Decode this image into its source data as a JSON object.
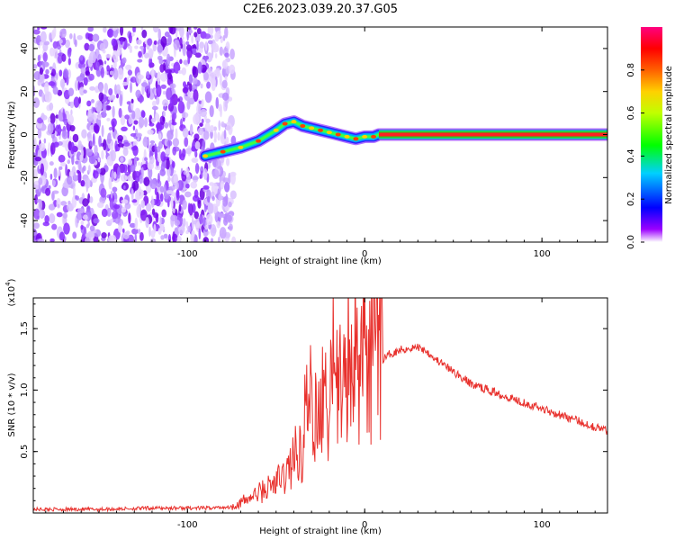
{
  "title": "C2E6.2023.039.20.37.G05",
  "chart_data": [
    {
      "type": "heatmap",
      "xlabel": "Height of straight line (km)",
      "ylabel": "Frequency (Hz)",
      "xlim": [
        -187,
        137
      ],
      "ylim": [
        -50,
        50
      ],
      "xticks": [
        -100,
        0,
        100
      ],
      "xtick_labels": [
        "-100",
        "0",
        "100"
      ],
      "yticks": [
        40,
        20,
        0,
        -20,
        -40
      ],
      "ytick_labels": [
        "40",
        "20",
        "0",
        "-20",
        "-40"
      ],
      "colorbar": {
        "label": "Normalized spectral amplitude",
        "range": [
          0,
          1
        ],
        "ticks": [
          0.0,
          0.2,
          0.4,
          0.6,
          0.8
        ],
        "tick_labels": [
          "0.0",
          "0.2",
          "0.4",
          "0.6",
          "0.8"
        ],
        "colormap": [
          "#ffffff",
          "#7f00ff",
          "#0000ff",
          "#00ffff",
          "#00ff00",
          "#ffff00",
          "#ff8000",
          "#ff0000",
          "#ff00ff"
        ]
      },
      "noise_region_x": [
        -187,
        -78
      ],
      "trace": {
        "x": [
          -90,
          -80,
          -70,
          -60,
          -50,
          -45,
          -40,
          -35,
          -30,
          -25,
          -20,
          -15,
          -10,
          -5,
          0,
          5,
          8,
          20,
          40,
          60,
          80,
          100,
          120,
          137
        ],
        "y": [
          -10,
          -8,
          -6,
          -3,
          2,
          5,
          6,
          4,
          3,
          2,
          1,
          0,
          -1,
          -2,
          -1,
          -1,
          0,
          0,
          0,
          0,
          0,
          0,
          0,
          0
        ]
      }
    },
    {
      "type": "line",
      "xlabel": "Height of straight line (km)",
      "ylabel": "SNR (10 * v/v)",
      "yscale_label": "(x10",
      "yscale_exp": "4",
      "xlim": [
        -187,
        137
      ],
      "ylim": [
        0,
        1.75
      ],
      "xticks": [
        -100,
        0,
        100
      ],
      "xtick_labels": [
        "-100",
        "0",
        "100"
      ],
      "yticks": [
        0.5,
        1.0,
        1.5
      ],
      "ytick_labels": [
        "0.5",
        "1.0",
        "1.5"
      ],
      "line_color": "#e8302c",
      "series": [
        {
          "x": [
            -187,
            -150,
            -120,
            -90,
            -75,
            -65,
            -55,
            -45,
            -40,
            -35,
            -30,
            -25,
            -20,
            -15,
            -10,
            -5,
            0,
            5,
            10,
            15,
            20,
            30,
            35,
            40,
            50,
            60,
            70,
            80,
            90,
            100,
            110,
            120,
            130,
            137
          ],
          "y": [
            0.03,
            0.03,
            0.04,
            0.04,
            0.05,
            0.12,
            0.2,
            0.3,
            0.45,
            0.55,
            0.75,
            0.85,
            0.95,
            1.0,
            1.05,
            1.15,
            1.2,
            1.2,
            1.25,
            1.3,
            1.33,
            1.35,
            1.32,
            1.25,
            1.15,
            1.05,
            1.0,
            0.95,
            0.9,
            0.85,
            0.8,
            0.75,
            0.7,
            0.67
          ]
        }
      ]
    }
  ]
}
